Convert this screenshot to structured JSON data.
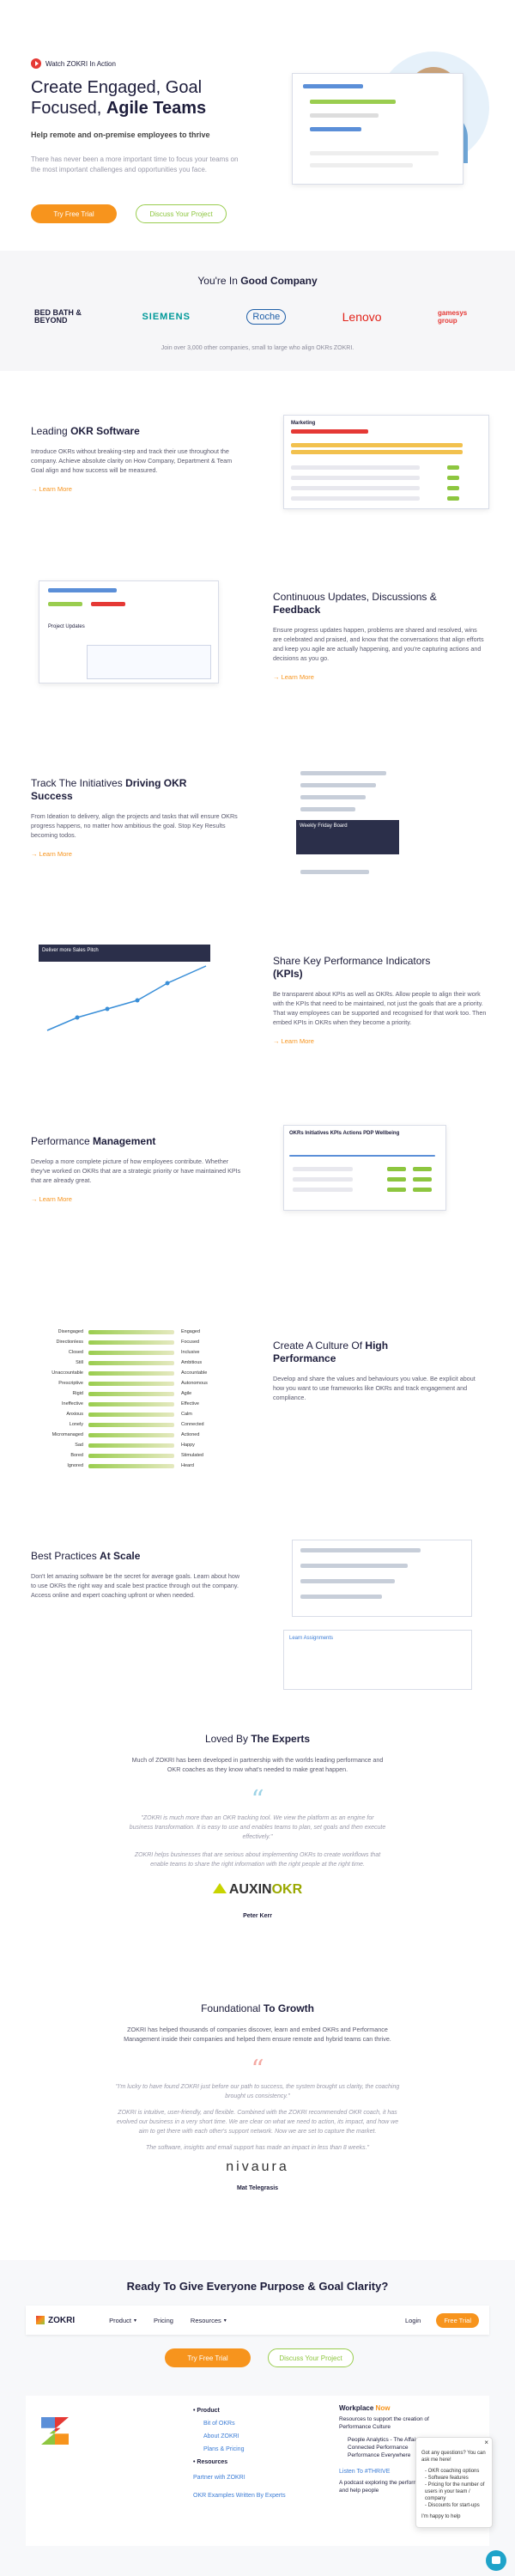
{
  "hero": {
    "watch": "Watch ZOKRI In Action",
    "headline": "Create Engaged, Goal Focused,",
    "headline_em": "Agile Teams",
    "subtitle": "Help remote and on-premise employees to thrive",
    "text": "There has never been a more important time to focus your teams on the most important challenges and opportunities you face.",
    "cta_primary": "Try Free Trial",
    "cta_secondary": "Discuss Your Project"
  },
  "company": {
    "title": "You're In",
    "title_em": "Good Company",
    "logos": [
      "BED BATH & BEYOND",
      "SIEMENS",
      "Roche",
      "Lenovo",
      "gamesys group"
    ],
    "text": "Join over 3,000 other companies, small to large who align OKRs ZOKRI."
  },
  "features": [
    {
      "title": "Leading",
      "title_em": "OKR Software",
      "text": "Introduce OKRs without breaking-step and track their use throughout the company. Achieve absolute clarity on How Company, Department & Team Goal align and how success will be measured.",
      "link": "Learn More",
      "mock_label": "Marketing"
    },
    {
      "title": "Continuous Updates, Discussions &",
      "title_em": "Feedback",
      "text": "Ensure progress updates happen, problems are shared and resolved, wins are celebrated and praised, and know that the conversations that align efforts and keep you agile are actually happening, and you're capturing actions and decisions as you go.",
      "link": "Learn More",
      "mock_label": "Project Updates"
    },
    {
      "title": "Track The Initiatives",
      "title_em": "Driving OKR Success",
      "text": "From Ideation to delivery, align the projects and tasks that will ensure OKRs progress happens, no matter how ambitious the goal. Stop Key Results becoming todos.",
      "link": "Learn More",
      "mock_label": "Weekly Friday Board"
    },
    {
      "title": "Share Key Performance Indicators",
      "title_em": "(KPIs)",
      "text": "Be transparent about KPIs as well as OKRs. Allow people to align their work with the KPIs that need to be maintained, not just the goals that are a priority. That way employees can be supported and recognised for that work too. Then embed KPIs in OKRs when they become a priority.",
      "link": "Learn More",
      "mock_label": "Deliver more Sales Pitch"
    },
    {
      "title": "Performance",
      "title_em": "Management",
      "text": "Develop a more complete picture of how employees contribute. Whether they've worked on OKRs that are a strategic priority or have maintained KPIs that are already great.",
      "link": "Learn More",
      "mock_label": "OKRs  Initiatives  KPIs  Actions  PDP  Wellbeing"
    },
    {
      "title": "Create A Culture Of",
      "title_em": "High Performance",
      "text": "Develop and share the values and behaviours you value. Be explicit about how you want to use frameworks like OKRs and track engagement and compliance."
    },
    {
      "title": "Best Practices",
      "title_em": "At Scale",
      "text": "Don't let amazing software be the secret for average goals. Learn about how to use OKRs the right way and scale best practice through out the company. Access online and expert coaching upfront or when needed.",
      "mock_label": "Learn Assignments"
    }
  ],
  "culture_pairs": [
    [
      "Disengaged",
      "Engaged"
    ],
    [
      "Directionless",
      "Focused"
    ],
    [
      "Closed",
      "Inclusive"
    ],
    [
      "Still",
      "Ambitious"
    ],
    [
      "Unaccountable",
      "Accountable"
    ],
    [
      "Prescriptive",
      "Autonomous"
    ],
    [
      "Rigid",
      "Agile"
    ],
    [
      "Ineffective",
      "Effective"
    ],
    [
      "Anxious",
      "Calm"
    ],
    [
      "Lonely",
      "Connected"
    ],
    [
      "Micromanaged",
      "Actioned"
    ],
    [
      "Sad",
      "Happy"
    ],
    [
      "Bored",
      "Stimulated"
    ],
    [
      "Ignored",
      "Heard"
    ]
  ],
  "experts": {
    "title": "Loved By",
    "title_em": "The Experts",
    "text": "Much of ZOKRI has been developed in partnership with the worlds leading performance and OKR coaches as they know what's needed to make great happen.",
    "quotes": [
      "\"ZOKRI is much more than an OKR tracking tool. We view the platform as an engine for business transformation. It is easy to use and enables teams to plan, set goals and then execute effectively.\"",
      "ZOKRI helps businesses that are serious about implementing OKRs to create workflows that enable teams to share the right information with the right people at the right time."
    ],
    "logo": "AUXIN",
    "logo_em": "OKR",
    "author": "Peter Kerr"
  },
  "growth": {
    "title": "Foundational",
    "title_em": "To Growth",
    "text": "ZOKRI has helped thousands of companies discover, learn and embed OKRs and Performance Management inside their companies and helped them ensure remote and hybrid teams can thrive.",
    "quotes": [
      "\"I'm lucky to have found ZOKRI just before our path to success, the system brought us clarity, the coaching brought us consistency.\"",
      "ZOKRI is intuitive, user-friendly, and flexible. Combined with the ZOKRI recommended OKR coach, it has evolved our business in a very short time. We are clear on what we need to action, its impact, and how we aim to get there with each other's support network. Now we are set to capture the market.",
      "The software, insights and email support has made an impact in less than 8 weeks.\""
    ],
    "logo": "nivaura",
    "author": "Mat Telegrasis"
  },
  "cta": {
    "title": "Ready To Give Everyone Purpose & Goal Clarity?",
    "cta_primary": "Try Free Trial",
    "cta_secondary": "Discuss Your Project"
  },
  "nav": {
    "brand": "ZOKRI",
    "items": [
      "Product",
      "Pricing",
      "Resources"
    ],
    "login": "Login",
    "trial": "Free Trial"
  },
  "menu": {
    "product": "Product",
    "links": [
      "Bit of OKRs",
      "About ZOKRI",
      "Plans & Pricing"
    ],
    "resources": "Resources",
    "partner": "Partner with ZOKRI",
    "examples": "OKR Examples Written By Experts",
    "workplace": "Workplace",
    "workplace_em": "Now",
    "workplace_text": "Resources to support the creation of Performance Culture",
    "articles": [
      "People Analytics - The Affair",
      "Connected Performance",
      "Performance Everywhere"
    ],
    "podcast": "Listen To #THRIVE",
    "podcast_text": "A podcast exploring the performance and help people"
  },
  "chat": {
    "intro": "Got any questions? You can ask me here!",
    "options": [
      "OKR coaching options",
      "Software features",
      "Pricing for the number of users in your team / company",
      "Discounts for start-ups"
    ],
    "outro": "I'm happy to help"
  }
}
